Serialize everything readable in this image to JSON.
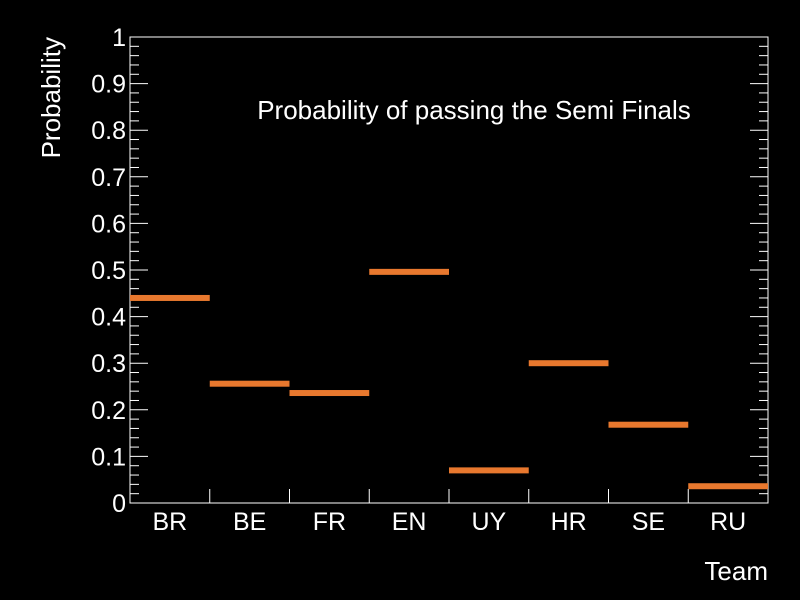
{
  "chart_data": {
    "type": "bar",
    "title": "Probability of passing the Semi Finals",
    "xlabel": "Team",
    "ylabel": "Probability",
    "categories": [
      "BR",
      "BE",
      "FR",
      "EN",
      "UY",
      "HR",
      "SE",
      "RU"
    ],
    "values": [
      0.44,
      0.256,
      0.236,
      0.496,
      0.07,
      0.3,
      0.168,
      0.036
    ],
    "ylim": [
      0,
      1
    ],
    "yticks": [
      "0",
      "0.1",
      "0.2",
      "0.3",
      "0.4",
      "0.5",
      "0.6",
      "0.7",
      "0.8",
      "0.9",
      "1"
    ],
    "grid": false,
    "colors": {
      "background": "#000000",
      "axes": "#ffffff",
      "series": "#e8782e"
    }
  }
}
